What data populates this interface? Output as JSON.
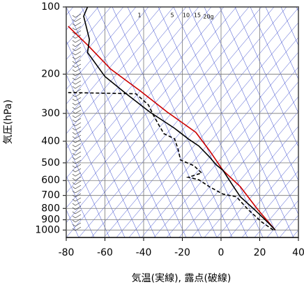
{
  "chart_data": {
    "type": "skewt",
    "xlabel": "気温(実線), 露点(破線)",
    "ylabel": "気圧(hPa)",
    "annotations": [
      "1",
      "5",
      "10",
      "15",
      "20g"
    ],
    "xlim": [
      -80,
      40
    ],
    "xticks": [
      -80,
      -60,
      -40,
      -20,
      0,
      20,
      40
    ],
    "ylim": [
      100,
      1080
    ],
    "ylog": true,
    "yticks": [
      100,
      200,
      300,
      400,
      500,
      600,
      700,
      800,
      900,
      1000
    ],
    "grid": true,
    "series": [
      {
        "color": "#cc0000",
        "dash": false,
        "pressure": [
          1000,
          810,
          640,
          540,
          440,
          365,
          295,
          237,
          190,
          148,
          122
        ],
        "temperature": [
          28,
          19,
          10,
          1,
          -6,
          -13,
          -28,
          -42,
          -57,
          -69,
          -79
        ]
      },
      {
        "color": "#000000",
        "dash": false,
        "pressure": [
          1000,
          930,
          810,
          710,
          640,
          540,
          510,
          470,
          420,
          390,
          350,
          295,
          245,
          205,
          160,
          140,
          110,
          100
        ],
        "temperature": [
          28,
          24.5,
          17.3,
          10,
          6.5,
          1,
          -2.5,
          -6,
          -11.5,
          -17,
          -24,
          -37,
          -49,
          -60,
          -69,
          -68,
          -71,
          -69
        ]
      },
      {
        "color": "#000000",
        "dash": true,
        "pressure": [
          1000,
          920,
          810,
          710,
          690,
          640,
          595,
          580,
          555,
          515,
          485,
          440,
          390,
          370,
          340,
          305,
          275,
          245,
          242
        ],
        "temperature": [
          27,
          21,
          14,
          8,
          1,
          -6,
          -11.5,
          -17,
          -10,
          -14,
          -21,
          -22,
          -24,
          -29.5,
          -32,
          -35,
          -37.5,
          -44,
          -79
        ]
      }
    ]
  }
}
